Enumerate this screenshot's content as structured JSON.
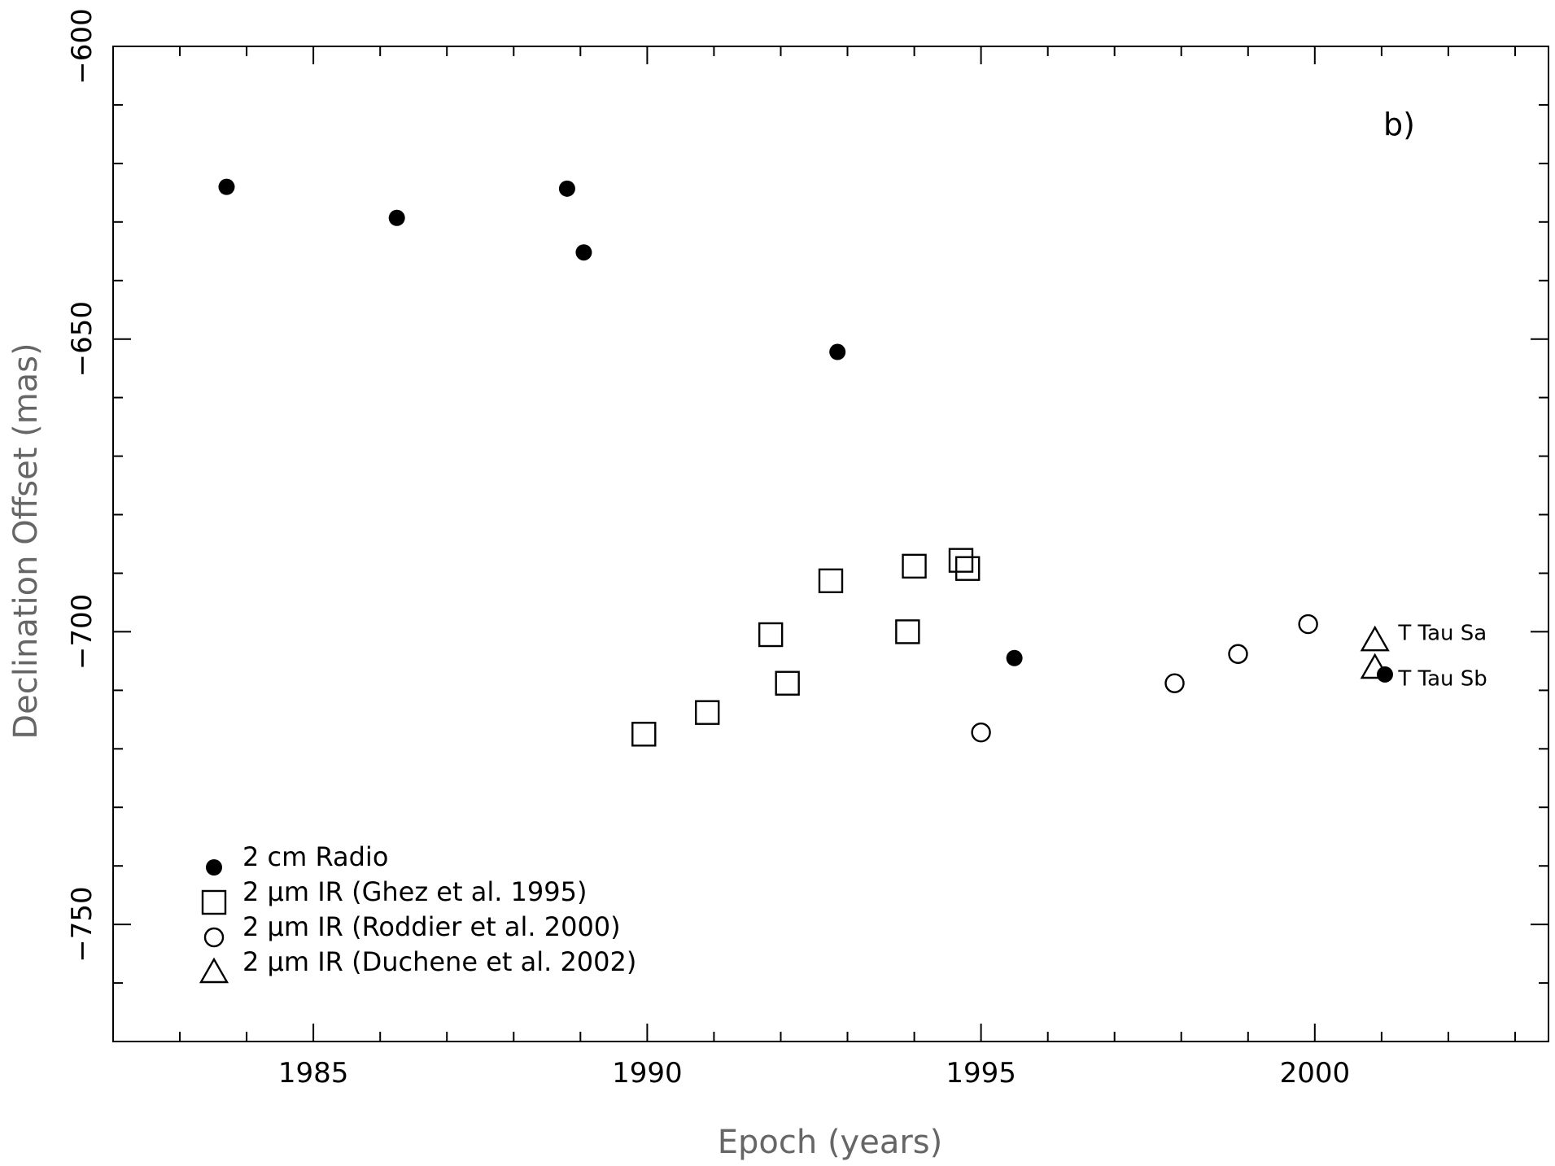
{
  "chart_data": {
    "type": "scatter",
    "title": "",
    "panel_label": "b)",
    "xlabel": "Epoch (years)",
    "ylabel": "Declination Offset (mas)",
    "xlim": [
      1982,
      2003.5
    ],
    "ylim": [
      -770,
      -600
    ],
    "x_ticks": [
      1985,
      1990,
      1995,
      2000
    ],
    "x_tick_labels": [
      "1985",
      "1990",
      "1995",
      "2000"
    ],
    "x_minor_step": 1,
    "y_ticks": [
      -600,
      -650,
      -700,
      -750
    ],
    "y_tick_labels": [
      "−600",
      "−650",
      "−700",
      "−750"
    ],
    "y_minor_step": 10,
    "grid": false,
    "legend_position": "bottom-left",
    "series": [
      {
        "name": "2 cm Radio",
        "marker": "filled-circle",
        "points": [
          {
            "x": 1983.7,
            "y": -624
          },
          {
            "x": 1986.25,
            "y": -629.3
          },
          {
            "x": 1988.8,
            "y": -624.3
          },
          {
            "x": 1989.05,
            "y": -635.2
          },
          {
            "x": 1992.85,
            "y": -652.2
          },
          {
            "x": 1995.5,
            "y": -704.5
          },
          {
            "x": 2001.05,
            "y": -707.3
          }
        ]
      },
      {
        "name": "2 μm IR (Ghez et al. 1995)",
        "marker": "open-square",
        "points": [
          {
            "x": 1989.95,
            "y": -717.5
          },
          {
            "x": 1990.9,
            "y": -713.8
          },
          {
            "x": 1991.85,
            "y": -700.5
          },
          {
            "x": 1992.1,
            "y": -708.8
          },
          {
            "x": 1992.75,
            "y": -691.3
          },
          {
            "x": 1993.9,
            "y": -700
          },
          {
            "x": 1994.0,
            "y": -688.8
          },
          {
            "x": 1994.7,
            "y": -687.8
          },
          {
            "x": 1994.8,
            "y": -689.2
          }
        ]
      },
      {
        "name": "2 μm IR (Roddier et al. 2000)",
        "marker": "open-circle",
        "points": [
          {
            "x": 1995.0,
            "y": -717.2
          },
          {
            "x": 1997.9,
            "y": -708.8
          },
          {
            "x": 1998.85,
            "y": -703.8
          },
          {
            "x": 1999.9,
            "y": -698.7
          }
        ]
      },
      {
        "name": "2 μm IR (Duchene et al. 2002)",
        "marker": "open-triangle",
        "points": [
          {
            "x": 2000.9,
            "y": -701.5
          },
          {
            "x": 2000.9,
            "y": -706.2
          }
        ]
      }
    ],
    "annotations": [
      {
        "text": "T Tau Sa",
        "x": 2001.25,
        "y": -700
      },
      {
        "text": "T Tau Sb",
        "x": 2001.25,
        "y": -707.8
      }
    ]
  }
}
